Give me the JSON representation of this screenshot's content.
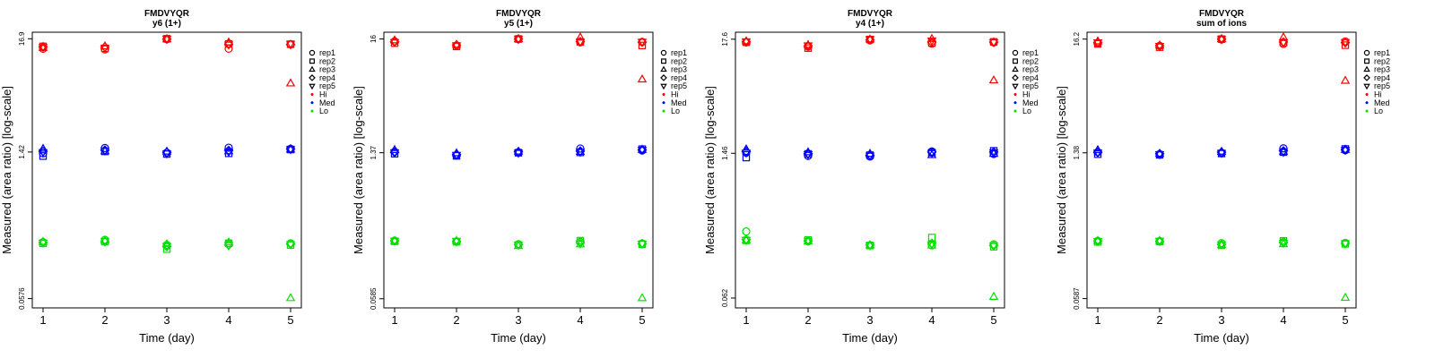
{
  "chart_data": [
    {
      "type": "scatter",
      "title": "FMDVYQR",
      "subtitle": "y6 (1+)",
      "xlabel": "Time (day)",
      "ylabel": "Measured (area ratio) [log-scale]",
      "x_ticks": [
        "1",
        "2",
        "3",
        "4",
        "5"
      ],
      "y_scale": "log",
      "y_ticks": [
        16.9,
        1.42,
        0.0576
      ],
      "y_tick_labels": [
        "16.9",
        "1.42",
        "0.0576"
      ],
      "ylim": [
        0.047,
        19.5
      ],
      "legend_position": "right",
      "series": [
        {
          "name": "rep1",
          "level": "Hi",
          "values": [
            13.6,
            13.4,
            16.7,
            13.6,
            15.0
          ]
        },
        {
          "name": "rep2",
          "level": "Hi",
          "values": [
            14.3,
            13.7,
            16.9,
            15.1,
            15.0
          ]
        },
        {
          "name": "rep3",
          "level": "Hi",
          "values": [
            13.9,
            14.4,
            16.8,
            15.7,
            6.4
          ]
        },
        {
          "name": "rep4",
          "level": "Hi",
          "values": [
            14.2,
            14.1,
            16.8,
            15.0,
            14.9
          ]
        },
        {
          "name": "rep5",
          "level": "Hi",
          "values": [
            14.0,
            13.8,
            16.8,
            14.8,
            15.1
          ]
        },
        {
          "name": "rep1",
          "level": "Med",
          "values": [
            1.38,
            1.55,
            1.4,
            1.56,
            1.52
          ]
        },
        {
          "name": "rep2",
          "level": "Med",
          "values": [
            1.3,
            1.44,
            1.36,
            1.38,
            1.5
          ]
        },
        {
          "name": "rep3",
          "level": "Med",
          "values": [
            1.53,
            1.45,
            1.44,
            1.45,
            1.51
          ]
        },
        {
          "name": "rep4",
          "level": "Med",
          "values": [
            1.44,
            1.48,
            1.41,
            1.47,
            1.52
          ]
        },
        {
          "name": "rep5",
          "level": "Med",
          "values": [
            1.41,
            1.46,
            1.37,
            1.42,
            1.5
          ]
        },
        {
          "name": "rep1",
          "level": "Lo",
          "values": [
            0.198,
            0.208,
            0.186,
            0.193,
            0.193
          ]
        },
        {
          "name": "rep2",
          "level": "Lo",
          "values": [
            0.193,
            0.2,
            0.17,
            0.193,
            0.186
          ]
        },
        {
          "name": "rep3",
          "level": "Lo",
          "values": [
            0.2,
            0.205,
            0.19,
            0.198,
            0.0585
          ]
        },
        {
          "name": "rep4",
          "level": "Lo",
          "values": [
            0.196,
            0.2,
            0.18,
            0.186,
            0.19
          ]
        },
        {
          "name": "rep5",
          "level": "Lo",
          "values": [
            0.195,
            0.202,
            0.181,
            0.184,
            0.188
          ]
        }
      ]
    },
    {
      "type": "scatter",
      "title": "FMDVYQR",
      "subtitle": "y5 (1+)",
      "xlabel": "Time (day)",
      "ylabel": "Measured (area ratio) [log-scale]",
      "x_ticks": [
        "1",
        "2",
        "3",
        "4",
        "5"
      ],
      "y_scale": "log",
      "y_ticks": [
        16,
        1.37,
        0.0585
      ],
      "y_tick_labels": [
        "16",
        "1.37",
        "0.0585"
      ],
      "ylim": [
        0.048,
        18.5
      ],
      "legend_position": "right",
      "series": [
        {
          "name": "rep1",
          "level": "Hi",
          "values": [
            15.2,
            13.9,
            15.9,
            14.9,
            15.0
          ]
        },
        {
          "name": "rep2",
          "level": "Hi",
          "values": [
            14.6,
            13.6,
            16.0,
            15.0,
            13.9
          ]
        },
        {
          "name": "rep3",
          "level": "Hi",
          "values": [
            15.6,
            14.2,
            16.0,
            16.6,
            6.7
          ]
        },
        {
          "name": "rep4",
          "level": "Hi",
          "values": [
            15.0,
            14.0,
            16.0,
            15.1,
            14.9
          ]
        },
        {
          "name": "rep5",
          "level": "Hi",
          "values": [
            14.9,
            13.9,
            15.9,
            15.0,
            15.0
          ]
        },
        {
          "name": "rep1",
          "level": "Med",
          "values": [
            1.4,
            1.3,
            1.38,
            1.5,
            1.44
          ]
        },
        {
          "name": "rep2",
          "level": "Med",
          "values": [
            1.34,
            1.28,
            1.37,
            1.38,
            1.48
          ]
        },
        {
          "name": "rep3",
          "level": "Med",
          "values": [
            1.46,
            1.36,
            1.41,
            1.4,
            1.47
          ]
        },
        {
          "name": "rep4",
          "level": "Med",
          "values": [
            1.38,
            1.32,
            1.4,
            1.42,
            1.46
          ]
        },
        {
          "name": "rep5",
          "level": "Med",
          "values": [
            1.37,
            1.3,
            1.36,
            1.39,
            1.45
          ]
        },
        {
          "name": "rep1",
          "level": "Lo",
          "values": [
            0.205,
            0.202,
            0.19,
            0.2,
            0.193
          ]
        },
        {
          "name": "rep2",
          "level": "Lo",
          "values": [
            0.202,
            0.2,
            0.186,
            0.205,
            0.19
          ]
        },
        {
          "name": "rep3",
          "level": "Lo",
          "values": [
            0.205,
            0.205,
            0.184,
            0.19,
            0.0595
          ]
        },
        {
          "name": "rep4",
          "level": "Lo",
          "values": [
            0.204,
            0.201,
            0.188,
            0.196,
            0.192
          ]
        },
        {
          "name": "rep5",
          "level": "Lo",
          "values": [
            0.203,
            0.203,
            0.187,
            0.192,
            0.191
          ]
        }
      ]
    },
    {
      "type": "scatter",
      "title": "FMDVYQR",
      "subtitle": "y4 (1+)",
      "xlabel": "Time (day)",
      "ylabel": "Measured (area ratio) [log-scale]",
      "x_ticks": [
        "1",
        "2",
        "3",
        "4",
        "5"
      ],
      "y_scale": "log",
      "y_ticks": [
        17.6,
        1.46,
        0.062
      ],
      "y_tick_labels": [
        "17.6",
        "1.46",
        "0.062"
      ],
      "ylim": [
        0.05,
        20.5
      ],
      "legend_position": "right",
      "series": [
        {
          "name": "rep1",
          "level": "Hi",
          "values": [
            16.4,
            15.0,
            17.2,
            16.0,
            16.4
          ]
        },
        {
          "name": "rep2",
          "level": "Hi",
          "values": [
            16.5,
            14.5,
            17.5,
            16.2,
            16.6
          ]
        },
        {
          "name": "rep3",
          "level": "Hi",
          "values": [
            16.9,
            15.6,
            17.6,
            17.8,
            7.2
          ]
        },
        {
          "name": "rep4",
          "level": "Hi",
          "values": [
            16.6,
            15.2,
            17.4,
            16.5,
            16.5
          ]
        },
        {
          "name": "rep5",
          "level": "Hi",
          "values": [
            16.7,
            15.3,
            17.5,
            17.0,
            16.4
          ]
        },
        {
          "name": "rep1",
          "level": "Med",
          "values": [
            1.48,
            1.38,
            1.36,
            1.52,
            1.44
          ]
        },
        {
          "name": "rep2",
          "level": "Med",
          "values": [
            1.33,
            1.44,
            1.4,
            1.48,
            1.54
          ]
        },
        {
          "name": "rep3",
          "level": "Med",
          "values": [
            1.6,
            1.5,
            1.45,
            1.41,
            1.45
          ]
        },
        {
          "name": "rep4",
          "level": "Med",
          "values": [
            1.52,
            1.45,
            1.4,
            1.5,
            1.5
          ]
        },
        {
          "name": "rep5",
          "level": "Med",
          "values": [
            1.47,
            1.42,
            1.38,
            1.46,
            1.48
          ]
        },
        {
          "name": "rep1",
          "level": "Lo",
          "values": [
            0.265,
            0.214,
            0.196,
            0.196,
            0.2
          ]
        },
        {
          "name": "rep2",
          "level": "Lo",
          "values": [
            0.218,
            0.22,
            0.195,
            0.232,
            0.19
          ]
        },
        {
          "name": "rep3",
          "level": "Lo",
          "values": [
            0.22,
            0.214,
            0.196,
            0.196,
            0.064
          ]
        },
        {
          "name": "rep4",
          "level": "Lo",
          "values": [
            0.222,
            0.216,
            0.197,
            0.205,
            0.195
          ]
        },
        {
          "name": "rep5",
          "level": "Lo",
          "values": [
            0.219,
            0.215,
            0.195,
            0.2,
            0.193
          ]
        }
      ]
    },
    {
      "type": "scatter",
      "title": "FMDVYQR",
      "subtitle": "sum of ions",
      "xlabel": "Time (day)",
      "ylabel": "Measured (area ratio) [log-scale]",
      "x_ticks": [
        "1",
        "2",
        "3",
        "4",
        "5"
      ],
      "y_scale": "log",
      "y_ticks": [
        16.2,
        1.38,
        0.0587
      ],
      "y_tick_labels": [
        "16.2",
        "1.38",
        "0.0587"
      ],
      "ylim": [
        0.048,
        18.8
      ],
      "legend_position": "right",
      "series": [
        {
          "name": "rep1",
          "level": "Hi",
          "values": [
            14.8,
            14.0,
            16.1,
            14.6,
            15.4
          ]
        },
        {
          "name": "rep2",
          "level": "Hi",
          "values": [
            14.6,
            13.6,
            16.2,
            15.0,
            14.2
          ]
        },
        {
          "name": "rep3",
          "level": "Hi",
          "values": [
            15.5,
            14.2,
            16.3,
            16.9,
            6.6
          ]
        },
        {
          "name": "rep4",
          "level": "Hi",
          "values": [
            15.0,
            14.0,
            16.2,
            15.2,
            15.0
          ]
        },
        {
          "name": "rep5",
          "level": "Hi",
          "values": [
            15.0,
            13.9,
            16.1,
            15.0,
            15.1
          ]
        },
        {
          "name": "rep1",
          "level": "Med",
          "values": [
            1.4,
            1.34,
            1.38,
            1.52,
            1.46
          ]
        },
        {
          "name": "rep2",
          "level": "Med",
          "values": [
            1.34,
            1.32,
            1.36,
            1.4,
            1.5
          ]
        },
        {
          "name": "rep3",
          "level": "Med",
          "values": [
            1.47,
            1.36,
            1.42,
            1.42,
            1.48
          ]
        },
        {
          "name": "rep4",
          "level": "Med",
          "values": [
            1.4,
            1.35,
            1.4,
            1.44,
            1.48
          ]
        },
        {
          "name": "rep5",
          "level": "Med",
          "values": [
            1.38,
            1.33,
            1.37,
            1.4,
            1.46
          ]
        },
        {
          "name": "rep1",
          "level": "Lo",
          "values": [
            0.205,
            0.204,
            0.195,
            0.2,
            0.196
          ]
        },
        {
          "name": "rep2",
          "level": "Lo",
          "values": [
            0.2,
            0.202,
            0.186,
            0.205,
            0.192
          ]
        },
        {
          "name": "rep3",
          "level": "Lo",
          "values": [
            0.206,
            0.206,
            0.188,
            0.192,
            0.06
          ]
        },
        {
          "name": "rep4",
          "level": "Lo",
          "values": [
            0.204,
            0.203,
            0.19,
            0.198,
            0.194
          ]
        },
        {
          "name": "rep5",
          "level": "Lo",
          "values": [
            0.203,
            0.204,
            0.189,
            0.195,
            0.193
          ]
        }
      ]
    }
  ],
  "legend": {
    "replicates": [
      {
        "label": "rep1",
        "marker": "circle"
      },
      {
        "label": "rep2",
        "marker": "square"
      },
      {
        "label": "rep3",
        "marker": "triangle-up"
      },
      {
        "label": "rep4",
        "marker": "diamond"
      },
      {
        "label": "rep5",
        "marker": "triangle-down"
      }
    ],
    "levels": [
      {
        "label": "Hi",
        "color": "#ff0000"
      },
      {
        "label": "Med",
        "color": "#0000ff"
      },
      {
        "label": "Lo",
        "color": "#00e000"
      }
    ]
  }
}
